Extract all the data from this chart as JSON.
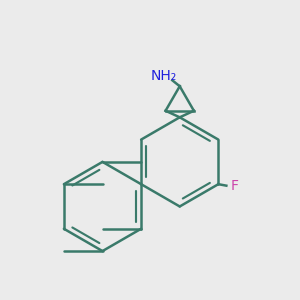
{
  "background_color": "#ebebeb",
  "bond_color": "#3a7a6a",
  "bond_width": 1.8,
  "nitrogen_color": "#2020dd",
  "fluorine_color": "#cc44aa",
  "figsize": [
    3.0,
    3.0
  ],
  "dpi": 100
}
